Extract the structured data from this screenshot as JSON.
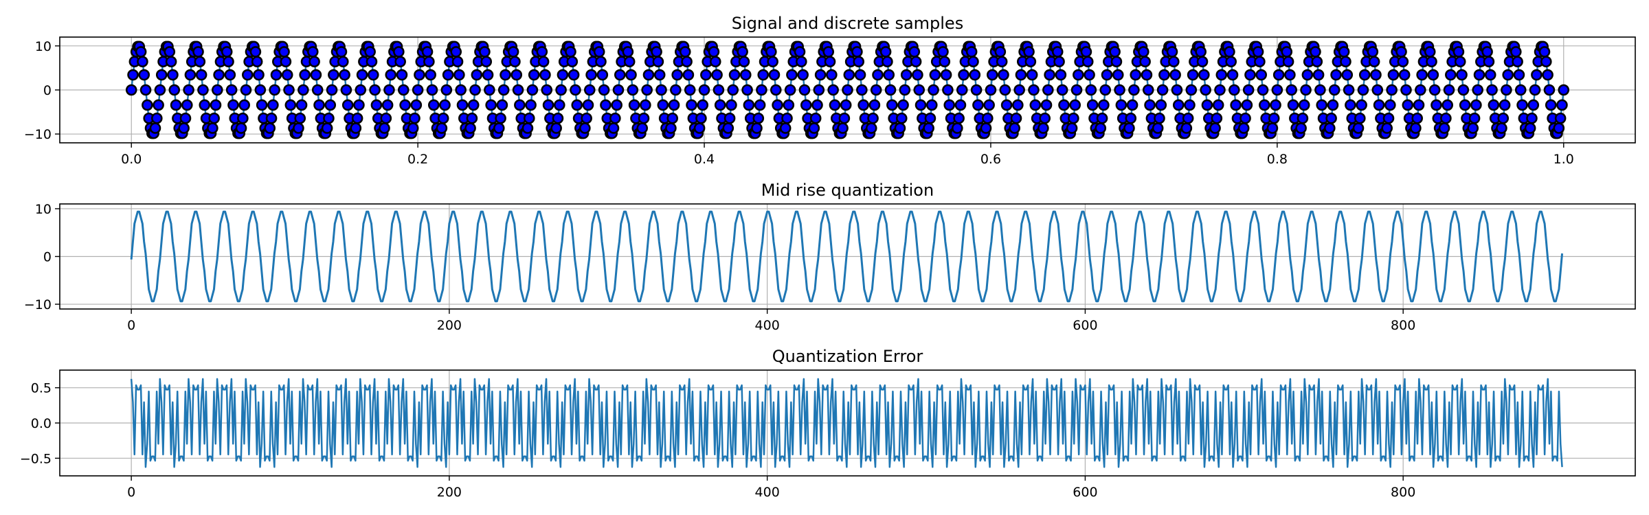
{
  "chart_data": [
    {
      "type": "line",
      "title": "Signal and discrete samples",
      "xlabel": "",
      "ylabel": "",
      "xlim": [
        -0.05,
        1.05
      ],
      "ylim": [
        -12,
        12
      ],
      "x_ticks": [
        0.0,
        0.2,
        0.4,
        0.6,
        0.8,
        1.0
      ],
      "x_tick_labels": [
        "0.0",
        "0.2",
        "0.4",
        "0.6",
        "0.8",
        "1.0"
      ],
      "y_ticks": [
        -10,
        0,
        10
      ],
      "y_tick_labels": [
        "−10",
        "0",
        "10"
      ],
      "grid": true,
      "signal": {
        "amplitude": 10,
        "frequency_hz": 50,
        "t_start": 0,
        "t_end": 1,
        "num_samples": 901
      },
      "series": [
        {
          "style": "line",
          "color": "#1f77b4"
        },
        {
          "style": "markers",
          "color": "#0000ff",
          "edge_color": "#000000"
        }
      ]
    },
    {
      "type": "line",
      "title": "Mid rise quantization",
      "xlabel": "",
      "ylabel": "",
      "xlim": [
        -45,
        946
      ],
      "ylim": [
        -11,
        11
      ],
      "x_ticks": [
        0,
        200,
        400,
        600,
        800
      ],
      "x_tick_labels": [
        "0",
        "200",
        "400",
        "600",
        "800"
      ],
      "y_ticks": [
        -10,
        0,
        10
      ],
      "y_tick_labels": [
        "−10",
        "0",
        "10"
      ],
      "grid": true,
      "quantization": {
        "levels": [
          -9.375,
          -8.125,
          -6.875,
          -5.625,
          -4.375,
          -3.125,
          -1.875,
          -0.625,
          0.625,
          1.875,
          3.125,
          4.375,
          5.625,
          6.875,
          8.125,
          9.375
        ],
        "step": 1.25
      },
      "series": [
        {
          "style": "line",
          "color": "#1f77b4"
        }
      ]
    },
    {
      "type": "line",
      "title": "Quantization Error",
      "xlabel": "",
      "ylabel": "",
      "xlim": [
        -45,
        946
      ],
      "ylim": [
        -0.75,
        0.75
      ],
      "x_ticks": [
        0,
        200,
        400,
        600,
        800
      ],
      "x_tick_labels": [
        "0",
        "200",
        "400",
        "600",
        "800"
      ],
      "y_ticks": [
        -0.5,
        0.0,
        0.5
      ],
      "y_tick_labels": [
        "−0.5",
        "0.0",
        "0.5"
      ],
      "grid": true,
      "series": [
        {
          "style": "line",
          "color": "#1f77b4"
        }
      ]
    }
  ]
}
